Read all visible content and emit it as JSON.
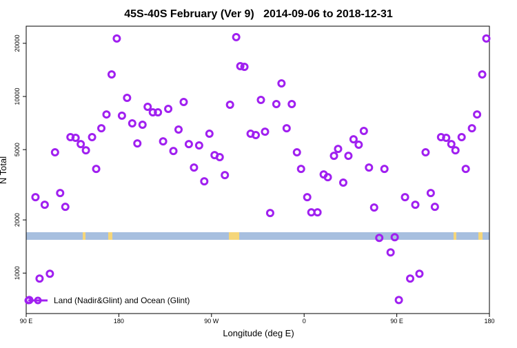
{
  "chart_data": {
    "type": "scatter",
    "title": "45S-40S February (Ver 9)   2014-09-06 to 2018-12-31",
    "xlabel": "Longitude (deg E)",
    "ylabel": "N Total",
    "xlim": [
      90,
      540
    ],
    "ylim": [
      590,
      25000
    ],
    "yscale": "log",
    "grid": false,
    "legend_position": "bottomleft",
    "xticks": [
      {
        "value": 90,
        "label": "90 E"
      },
      180,
      {
        "value": 270,
        "label": "90 W"
      },
      {
        "value": 360,
        "label": "0"
      },
      {
        "value": 450,
        "label": "90 E"
      },
      {
        "value": 540,
        "label": "180"
      }
    ],
    "yticks": [
      1000,
      2000,
      5000,
      10000,
      20000
    ],
    "series": [
      {
        "name": "Land (Nadir&Glint) and Ocean (Glint)",
        "color": "#a020f0",
        "x": [
          93,
          99,
          103,
          108,
          113,
          118,
          123,
          128,
          133,
          138,
          143,
          148,
          154,
          158,
          163,
          168,
          173,
          178,
          183,
          188,
          193,
          198,
          203,
          208,
          213,
          218,
          223,
          228,
          233,
          238,
          243,
          248,
          253,
          258,
          263,
          268,
          273,
          278,
          283,
          288,
          294,
          298,
          302,
          308,
          313,
          318,
          322,
          327,
          333,
          338,
          343,
          348,
          353,
          357,
          363,
          367,
          373,
          379,
          383,
          389,
          393,
          398,
          403,
          408,
          413,
          418,
          423,
          428,
          433,
          438,
          444,
          448,
          452,
          458,
          463,
          468,
          472,
          478,
          483,
          487,
          493,
          498,
          503,
          507,
          513,
          517,
          523,
          528,
          533,
          537
        ],
        "values": [
          704,
          2690,
          931,
          2437,
          991,
          4827,
          2840,
          2371,
          5886,
          5834,
          5374,
          4955,
          5886,
          3890,
          6607,
          7911,
          13335,
          21290,
          7780,
          9820,
          7043,
          5420,
          6918,
          8736,
          8128,
          8128,
          5572,
          8506,
          4913,
          6494,
          9305,
          5374,
          3960,
          5281,
          3308,
          6152,
          4656,
          4533,
          3588,
          8980,
          21670,
          14850,
          14720,
          6152,
          6043,
          9556,
          6318,
          2187,
          9057,
          11860,
          6607,
          9057,
          4827,
          3890,
          2690,
          2207,
          2207,
          3619,
          3491,
          4613,
          5047,
          3251,
          4613,
          5723,
          5333,
          6382,
          3960,
          2350,
          1582,
          3890,
          1310,
          1596,
          704,
          2690,
          931,
          2437,
          991,
          4827,
          2840,
          2371,
          5886,
          5834,
          5374,
          4955,
          5886,
          3890,
          6607,
          7911,
          13335,
          21290
        ]
      }
    ]
  }
}
